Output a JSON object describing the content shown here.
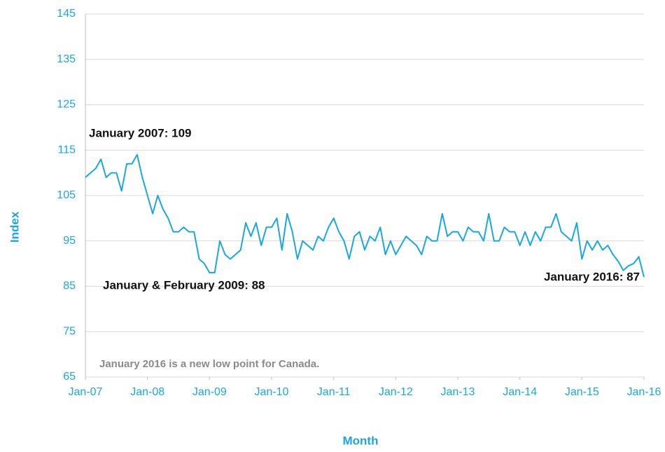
{
  "chart_data": {
    "type": "line",
    "y_label": "Index",
    "x_label": "Month",
    "annotations": [
      "January 2007: 109",
      "January & February 2009: 88",
      "January 2016: 87",
      "January 2016 is a new low point for Canada."
    ],
    "x": [
      "2007-01",
      "2007-02",
      "2007-03",
      "2007-04",
      "2007-05",
      "2007-06",
      "2007-07",
      "2007-08",
      "2007-09",
      "2007-10",
      "2007-11",
      "2007-12",
      "2008-01",
      "2008-02",
      "2008-03",
      "2008-04",
      "2008-05",
      "2008-06",
      "2008-07",
      "2008-08",
      "2008-09",
      "2008-10",
      "2008-11",
      "2008-12",
      "2009-01",
      "2009-02",
      "2009-03",
      "2009-04",
      "2009-05",
      "2009-06",
      "2009-07",
      "2009-08",
      "2009-09",
      "2009-10",
      "2009-11",
      "2009-12",
      "2010-01",
      "2010-02",
      "2010-03",
      "2010-04",
      "2010-05",
      "2010-06",
      "2010-07",
      "2010-08",
      "2010-09",
      "2010-10",
      "2010-11",
      "2010-12",
      "2011-01",
      "2011-02",
      "2011-03",
      "2011-04",
      "2011-05",
      "2011-06",
      "2011-07",
      "2011-08",
      "2011-09",
      "2011-10",
      "2011-11",
      "2011-12",
      "2012-01",
      "2012-02",
      "2012-03",
      "2012-04",
      "2012-05",
      "2012-06",
      "2012-07",
      "2012-08",
      "2012-09",
      "2012-10",
      "2012-11",
      "2012-12",
      "2013-01",
      "2013-02",
      "2013-03",
      "2013-04",
      "2013-05",
      "2013-06",
      "2013-07",
      "2013-08",
      "2013-09",
      "2013-10",
      "2013-11",
      "2013-12",
      "2014-01",
      "2014-02",
      "2014-03",
      "2014-04",
      "2014-05",
      "2014-06",
      "2014-07",
      "2014-08",
      "2014-09",
      "2014-10",
      "2014-11",
      "2014-12",
      "2015-01",
      "2015-02",
      "2015-03",
      "2015-04",
      "2015-05",
      "2015-06",
      "2015-07",
      "2015-08",
      "2015-09",
      "2015-10",
      "2015-11",
      "2015-12",
      "2016-01"
    ],
    "series": [
      {
        "name": "Index",
        "color": "#1aa7e1",
        "values": [
          109,
          110,
          111,
          113,
          109,
          110,
          110,
          106,
          112,
          112,
          114,
          109,
          105,
          101,
          105,
          102,
          100,
          97,
          97,
          98,
          97,
          97,
          91,
          90,
          88,
          88,
          95,
          92,
          91,
          92,
          93,
          99,
          96,
          99,
          94,
          98,
          98,
          100,
          93,
          101,
          97,
          91,
          95,
          94,
          93,
          96,
          95,
          98,
          100,
          97,
          95,
          91,
          96,
          97,
          93,
          96,
          95,
          98,
          92,
          95,
          92,
          94,
          96,
          95,
          94,
          92,
          96,
          95,
          95,
          101,
          96,
          97,
          97,
          95,
          98,
          97,
          97,
          95,
          101,
          95,
          95,
          98,
          97,
          97,
          94,
          97,
          94,
          97,
          95,
          98,
          98,
          101,
          97,
          96,
          95,
          99,
          91,
          95,
          93,
          95,
          93,
          94,
          92,
          90.5,
          88.5,
          89.5,
          90,
          91.5,
          87
        ]
      }
    ],
    "xlim": [
      "2007-01",
      "2016-01"
    ],
    "xticks": [
      {
        "value": "2007-01",
        "label": "Jan-07"
      },
      {
        "value": "2008-01",
        "label": "Jan-08"
      },
      {
        "value": "2009-01",
        "label": "Jan-09"
      },
      {
        "value": "2010-01",
        "label": "Jan-10"
      },
      {
        "value": "2011-01",
        "label": "Jan-11"
      },
      {
        "value": "2012-01",
        "label": "Jan-12"
      },
      {
        "value": "2013-01",
        "label": "Jan-13"
      },
      {
        "value": "2014-01",
        "label": "Jan-14"
      },
      {
        "value": "2015-01",
        "label": "Jan-15"
      },
      {
        "value": "2016-01",
        "label": "Jan-16"
      }
    ],
    "ylim": [
      65,
      145
    ],
    "yticks": [
      65,
      75,
      85,
      95,
      105,
      115,
      125,
      135,
      145
    ],
    "grid": true
  }
}
